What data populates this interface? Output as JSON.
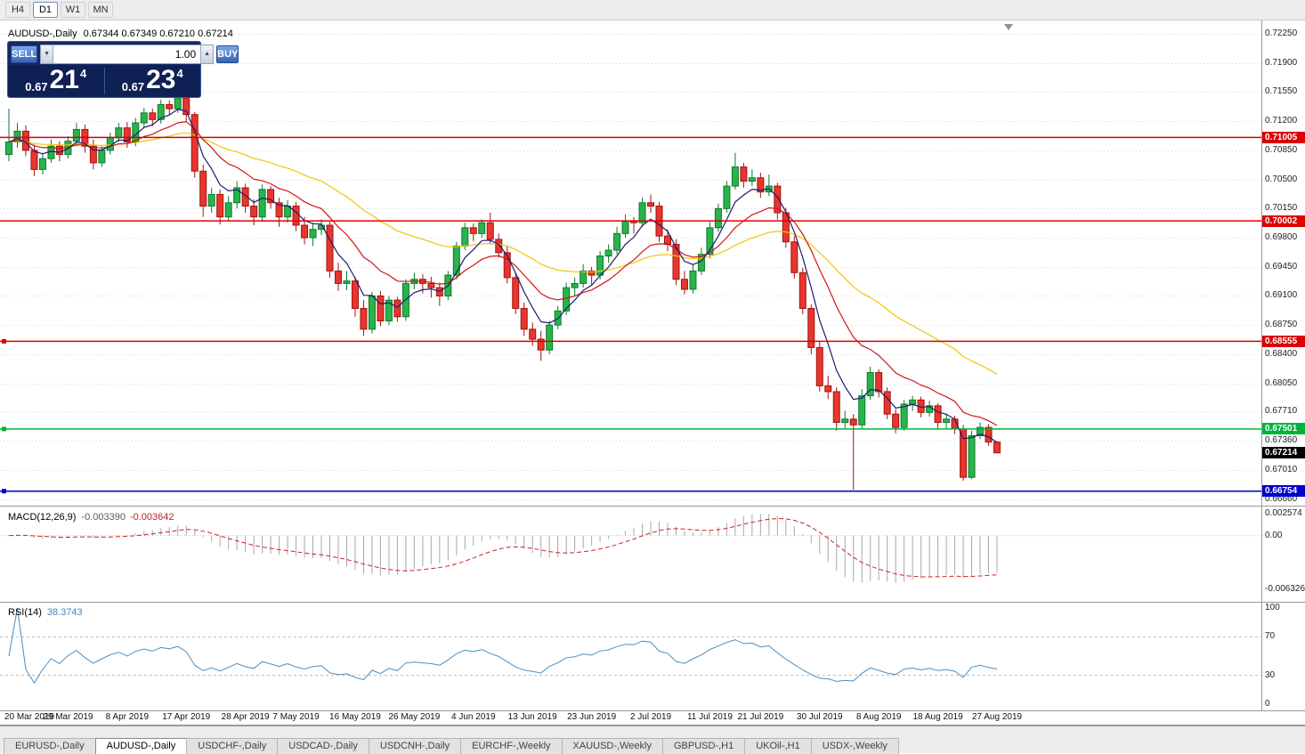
{
  "toolbar": {
    "periods": [
      {
        "label": "H4",
        "active": false
      },
      {
        "label": "D1",
        "active": true
      },
      {
        "label": "W1",
        "active": false
      },
      {
        "label": "MN",
        "active": false
      }
    ]
  },
  "chart": {
    "title": "AUDUSD-,Daily",
    "ohlc": "0.67344 0.67349 0.67210 0.67214"
  },
  "trade": {
    "sell_label": "SELL",
    "buy_label": "BUY",
    "volume": "1.00",
    "down_arrow": "▼",
    "up_arrow": "▲",
    "sell_small": "0.67",
    "sell_big": "21",
    "sell_sup": "4",
    "buy_small": "0.67",
    "buy_big": "23",
    "buy_sup": "4"
  },
  "price_axis": [
    "0.72250",
    "0.71900",
    "0.71550",
    "0.71200",
    "0.70850",
    "0.70500",
    "0.70150",
    "0.69800",
    "0.69450",
    "0.69100",
    "0.68750",
    "0.68400",
    "0.68050",
    "0.67710",
    "0.67360",
    "0.67010",
    "0.66660"
  ],
  "levels": [
    {
      "price": 0.71005,
      "label": "0.71005",
      "color": "#dd0000",
      "handle": false
    },
    {
      "price": 0.70002,
      "label": "0.70002",
      "color": "#dd0000",
      "handle": false
    },
    {
      "price": 0.68555,
      "label": "0.68555",
      "color": "#dd0000",
      "handle": true
    },
    {
      "price": 0.67501,
      "label": "0.67501",
      "color": "#00b33c",
      "handle": true
    },
    {
      "price": 0.66754,
      "label": "0.66754",
      "color": "#0000cc",
      "handle": true
    }
  ],
  "current_price": {
    "price": 0.67214,
    "label": "0.67214",
    "bg": "#000000"
  },
  "colors": {
    "bull": "#28b44a",
    "bull_edge": "#0e7a30",
    "bear": "#e8352e",
    "bear_edge": "#a01510",
    "ma_fast": "#1c1c6e",
    "ma_mid": "#d01616",
    "ma_slow": "#edc80a",
    "macd_hist": "#a8a8a8",
    "macd_signal": "#cc2222",
    "rsi_line": "#4a8fc0",
    "grid": "#d8d8d8"
  },
  "chart_data": {
    "type": "candlestick",
    "symbol": "AUDUSD-",
    "timeframe": "Daily",
    "y_range": [
      0.6658,
      0.724
    ],
    "x_labels": [
      "20 Mar 2019",
      "29 Mar 2019",
      "8 Apr 2019",
      "17 Apr 2019",
      "28 Apr 2019",
      "7 May 2019",
      "16 May 2019",
      "26 May 2019",
      "4 Jun 2019",
      "13 Jun 2019",
      "23 Jun 2019",
      "2 Jul 2019",
      "11 Jul 2019",
      "21 Jul 2019",
      "30 Jul 2019",
      "8 Aug 2019",
      "18 Aug 2019",
      "27 Aug 2019"
    ],
    "x_label_indices": [
      0,
      7,
      14,
      21,
      28,
      34,
      41,
      48,
      55,
      62,
      69,
      76,
      83,
      89,
      96,
      103,
      110,
      117
    ],
    "moving_averages": [
      {
        "name": "slow-ma",
        "period": 34,
        "color": "#edc80a"
      },
      {
        "name": "medium-ma",
        "period": 13,
        "color": "#d01616"
      },
      {
        "name": "fast-ma",
        "period": 5,
        "color": "#1c1c6e"
      }
    ],
    "candles": [
      [
        0.708,
        0.7135,
        0.7072,
        0.7095
      ],
      [
        0.7095,
        0.7118,
        0.7088,
        0.7108
      ],
      [
        0.7108,
        0.7115,
        0.7078,
        0.7085
      ],
      [
        0.7085,
        0.7092,
        0.7054,
        0.7062
      ],
      [
        0.7062,
        0.7082,
        0.7056,
        0.7075
      ],
      [
        0.7075,
        0.7098,
        0.707,
        0.709
      ],
      [
        0.709,
        0.7096,
        0.7072,
        0.708
      ],
      [
        0.708,
        0.7102,
        0.7075,
        0.7096
      ],
      [
        0.7096,
        0.7118,
        0.709,
        0.711
      ],
      [
        0.711,
        0.7116,
        0.7082,
        0.709
      ],
      [
        0.709,
        0.7098,
        0.7062,
        0.707
      ],
      [
        0.707,
        0.709,
        0.7065,
        0.7085
      ],
      [
        0.7085,
        0.7106,
        0.708,
        0.71
      ],
      [
        0.71,
        0.7118,
        0.7095,
        0.7112
      ],
      [
        0.7112,
        0.7119,
        0.7088,
        0.7095
      ],
      [
        0.7095,
        0.7124,
        0.709,
        0.7118
      ],
      [
        0.7118,
        0.7136,
        0.7112,
        0.713
      ],
      [
        0.713,
        0.7135,
        0.7114,
        0.7122
      ],
      [
        0.7122,
        0.7146,
        0.7117,
        0.714
      ],
      [
        0.714,
        0.7145,
        0.7128,
        0.7135
      ],
      [
        0.7135,
        0.7152,
        0.713,
        0.7148
      ],
      [
        0.7148,
        0.715,
        0.712,
        0.7128
      ],
      [
        0.7128,
        0.7131,
        0.7052,
        0.706
      ],
      [
        0.706,
        0.7068,
        0.7005,
        0.7018
      ],
      [
        0.7018,
        0.704,
        0.701,
        0.7032
      ],
      [
        0.7032,
        0.7038,
        0.6996,
        0.7005
      ],
      [
        0.7005,
        0.703,
        0.7,
        0.7022
      ],
      [
        0.7022,
        0.7048,
        0.7015,
        0.704
      ],
      [
        0.704,
        0.7045,
        0.701,
        0.7018
      ],
      [
        0.7018,
        0.7026,
        0.6995,
        0.7005
      ],
      [
        0.7005,
        0.7044,
        0.7,
        0.7038
      ],
      [
        0.7038,
        0.7042,
        0.7015,
        0.7022
      ],
      [
        0.7022,
        0.7028,
        0.6993,
        0.7005
      ],
      [
        0.7005,
        0.7025,
        0.6998,
        0.7018
      ],
      [
        0.7018,
        0.7023,
        0.6988,
        0.6995
      ],
      [
        0.6995,
        0.7005,
        0.6972,
        0.698
      ],
      [
        0.698,
        0.6998,
        0.697,
        0.699
      ],
      [
        0.699,
        0.7002,
        0.6983,
        0.6995
      ],
      [
        0.6995,
        0.6999,
        0.6932,
        0.694
      ],
      [
        0.694,
        0.695,
        0.6916,
        0.6925
      ],
      [
        0.6925,
        0.694,
        0.6917,
        0.6928
      ],
      [
        0.6928,
        0.6933,
        0.6885,
        0.6895
      ],
      [
        0.6895,
        0.6905,
        0.6862,
        0.687
      ],
      [
        0.687,
        0.6915,
        0.6865,
        0.691
      ],
      [
        0.691,
        0.6916,
        0.6874,
        0.688
      ],
      [
        0.688,
        0.691,
        0.6875,
        0.6905
      ],
      [
        0.6905,
        0.6909,
        0.6879,
        0.6885
      ],
      [
        0.6885,
        0.693,
        0.688,
        0.6925
      ],
      [
        0.6925,
        0.6938,
        0.6918,
        0.693
      ],
      [
        0.693,
        0.6936,
        0.6913,
        0.6925
      ],
      [
        0.6925,
        0.6933,
        0.6908,
        0.692
      ],
      [
        0.692,
        0.6926,
        0.6898,
        0.691
      ],
      [
        0.691,
        0.694,
        0.6905,
        0.6935
      ],
      [
        0.6935,
        0.6975,
        0.693,
        0.697
      ],
      [
        0.697,
        0.6998,
        0.6965,
        0.6992
      ],
      [
        0.6992,
        0.6997,
        0.6976,
        0.6985
      ],
      [
        0.6985,
        0.7002,
        0.698,
        0.6998
      ],
      [
        0.6998,
        0.701,
        0.6972,
        0.6978
      ],
      [
        0.6978,
        0.6985,
        0.6956,
        0.6962
      ],
      [
        0.6962,
        0.697,
        0.6925,
        0.6932
      ],
      [
        0.6932,
        0.6938,
        0.6888,
        0.6895
      ],
      [
        0.6895,
        0.6902,
        0.6862,
        0.687
      ],
      [
        0.687,
        0.6878,
        0.685,
        0.6858
      ],
      [
        0.6858,
        0.6868,
        0.6832,
        0.6845
      ],
      [
        0.6845,
        0.688,
        0.684,
        0.6875
      ],
      [
        0.6875,
        0.6898,
        0.687,
        0.6892
      ],
      [
        0.6892,
        0.6926,
        0.6887,
        0.692
      ],
      [
        0.692,
        0.6932,
        0.691,
        0.6925
      ],
      [
        0.6925,
        0.6948,
        0.692,
        0.694
      ],
      [
        0.694,
        0.6945,
        0.6923,
        0.6935
      ],
      [
        0.6935,
        0.6964,
        0.693,
        0.6958
      ],
      [
        0.6958,
        0.6972,
        0.695,
        0.6965
      ],
      [
        0.6965,
        0.6993,
        0.696,
        0.6985
      ],
      [
        0.6985,
        0.7008,
        0.698,
        0.7
      ],
      [
        0.7,
        0.7005,
        0.6985,
        0.6998
      ],
      [
        0.6998,
        0.7028,
        0.6993,
        0.7022
      ],
      [
        0.7022,
        0.7032,
        0.701,
        0.7018
      ],
      [
        0.7018,
        0.7023,
        0.6975,
        0.6982
      ],
      [
        0.6982,
        0.699,
        0.6964,
        0.6972
      ],
      [
        0.6972,
        0.6978,
        0.6923,
        0.693
      ],
      [
        0.693,
        0.694,
        0.6912,
        0.6918
      ],
      [
        0.6918,
        0.6948,
        0.6913,
        0.694
      ],
      [
        0.694,
        0.6968,
        0.6935,
        0.696
      ],
      [
        0.696,
        0.6999,
        0.6955,
        0.6992
      ],
      [
        0.6992,
        0.7021,
        0.6987,
        0.7015
      ],
      [
        0.7015,
        0.7048,
        0.701,
        0.7042
      ],
      [
        0.7042,
        0.7082,
        0.7038,
        0.7065
      ],
      [
        0.7065,
        0.707,
        0.704,
        0.7048
      ],
      [
        0.7048,
        0.7062,
        0.7042,
        0.7052
      ],
      [
        0.7052,
        0.7058,
        0.7028,
        0.7035
      ],
      [
        0.7035,
        0.7056,
        0.703,
        0.7042
      ],
      [
        0.7042,
        0.7046,
        0.7002,
        0.701
      ],
      [
        0.701,
        0.7016,
        0.6968,
        0.6975
      ],
      [
        0.6975,
        0.6982,
        0.6931,
        0.6938
      ],
      [
        0.6938,
        0.6944,
        0.6888,
        0.6895
      ],
      [
        0.6895,
        0.69,
        0.684,
        0.6848
      ],
      [
        0.6848,
        0.6856,
        0.6795,
        0.6802
      ],
      [
        0.6802,
        0.6814,
        0.6786,
        0.6795
      ],
      [
        0.6795,
        0.68,
        0.6748,
        0.6758
      ],
      [
        0.6758,
        0.6772,
        0.675,
        0.6762
      ],
      [
        0.6762,
        0.6768,
        0.6677,
        0.6755
      ],
      [
        0.6755,
        0.6798,
        0.675,
        0.679
      ],
      [
        0.679,
        0.6825,
        0.6785,
        0.6818
      ],
      [
        0.6818,
        0.6822,
        0.6788,
        0.6795
      ],
      [
        0.6795,
        0.68,
        0.6762,
        0.6768
      ],
      [
        0.6768,
        0.6774,
        0.6745,
        0.6752
      ],
      [
        0.6752,
        0.6785,
        0.6748,
        0.678
      ],
      [
        0.678,
        0.679,
        0.6772,
        0.6785
      ],
      [
        0.6785,
        0.6789,
        0.6764,
        0.677
      ],
      [
        0.677,
        0.6784,
        0.6765,
        0.6778
      ],
      [
        0.6778,
        0.6781,
        0.6751,
        0.6758
      ],
      [
        0.6758,
        0.6769,
        0.675,
        0.6762
      ],
      [
        0.6762,
        0.6766,
        0.6744,
        0.675
      ],
      [
        0.675,
        0.6755,
        0.6688,
        0.6692
      ],
      [
        0.6692,
        0.6748,
        0.669,
        0.6742
      ],
      [
        0.6742,
        0.6758,
        0.6738,
        0.6752
      ],
      [
        0.6752,
        0.6756,
        0.673,
        0.67344
      ],
      [
        0.67344,
        0.67349,
        0.6721,
        0.67214
      ]
    ]
  },
  "macd": {
    "title": "MACD(12,26,9)",
    "value_main": "-0.003390",
    "value_signal": "-0.003642",
    "axis_labels": [
      "0.002574",
      "0.00",
      "-0.006326"
    ],
    "range": [
      -0.006326,
      0.002574
    ],
    "fast": 12,
    "slow": 26,
    "signal": 9
  },
  "rsi": {
    "title": "RSI(14)",
    "value": "38.3743",
    "period": 14,
    "axis_labels": [
      "100",
      "70",
      "30",
      "0"
    ],
    "levels": [
      70,
      30
    ]
  },
  "tabs": [
    {
      "label": "EURUSD-,Daily",
      "active": false
    },
    {
      "label": "AUDUSD-,Daily",
      "active": true
    },
    {
      "label": "USDCHF-,Daily",
      "active": false
    },
    {
      "label": "USDCAD-,Daily",
      "active": false
    },
    {
      "label": "USDCNH-,Daily",
      "active": false
    },
    {
      "label": "EURCHF-,Weekly",
      "active": false
    },
    {
      "label": "XAUUSD-,Weekly",
      "active": false
    },
    {
      "label": "GBPUSD-,H1",
      "active": false
    },
    {
      "label": "UKOil-,H1",
      "active": false
    },
    {
      "label": "USDX-,Weekly",
      "active": false
    }
  ]
}
